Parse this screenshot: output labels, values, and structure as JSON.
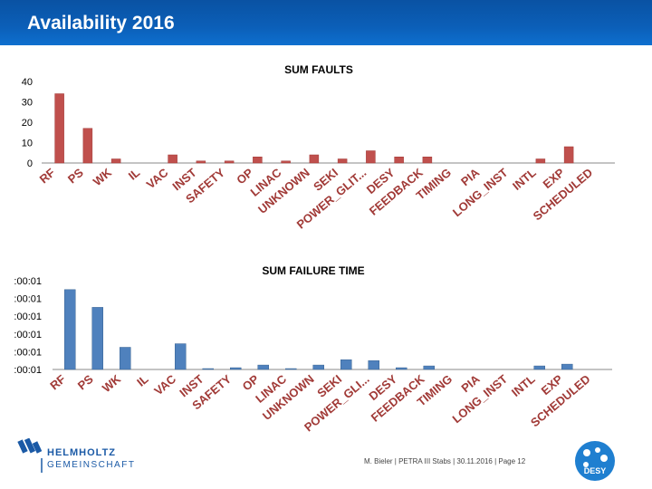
{
  "header": {
    "title": "Availability 2016"
  },
  "footer": {
    "org_line1": "HELMHOLTZ",
    "org_line2": "GEMEINSCHAFT",
    "text": "M. Bieler  |  PETRA III Stabs  |  30.11.2016  |  Page 12",
    "desy_label": "DESY"
  },
  "colors": {
    "bar": "#c0504d",
    "bar_dark": "#a13a37",
    "bar2": "#4f81bd",
    "bar2_dark": "#3a6493",
    "header": "#0b5fb8",
    "label": "#a13a37"
  },
  "chart_data": [
    {
      "type": "bar",
      "title": "SUM FAULTS",
      "categories": [
        "RF",
        "PS",
        "WK",
        "IL",
        "VAC",
        "INST",
        "SAFETY",
        "OP",
        "LINAC",
        "UNKNOWN",
        "SEKI",
        "POWER_GLIT...",
        "DESY",
        "FEEDBACK",
        "TIMING",
        "PIA",
        "LONG_INST",
        "INTL",
        "EXP",
        "SCHEDULED"
      ],
      "values": [
        34,
        17,
        2,
        0,
        4,
        1,
        1,
        3,
        1,
        4,
        2,
        6,
        3,
        3,
        0,
        0,
        0,
        2,
        8,
        0
      ],
      "ylim": [
        0,
        40
      ],
      "yticks": [
        "0",
        "10",
        "20",
        "30",
        "40"
      ],
      "xlabel": "",
      "ylabel": "",
      "grid": false,
      "legend": "none"
    },
    {
      "type": "bar",
      "title": "SUM FAILURE TIME",
      "categories": [
        "RF",
        "PS",
        "WK",
        "IL",
        "VAC",
        "INST",
        "SAFETY",
        "OP",
        "LINAC",
        "UNKNOWN",
        "SEKI",
        "POWER_GLI...",
        "DESY",
        "FEEDBACK",
        "TIMING",
        "PIA",
        "LONG_INST",
        "INTL",
        "EXP",
        "SCHEDULED"
      ],
      "values": [
        90,
        70,
        25,
        0,
        29,
        1,
        2,
        5,
        1,
        5,
        11,
        10,
        2,
        4,
        0,
        0,
        0,
        4,
        6,
        0
      ],
      "ylim": [
        0,
        100
      ],
      "yticks": [
        ":00:01",
        ":00:01",
        ":00:01",
        ":00:01",
        ":00:01",
        ":00:01"
      ],
      "xlabel": "",
      "ylabel": "",
      "grid": false,
      "legend": "none"
    }
  ]
}
